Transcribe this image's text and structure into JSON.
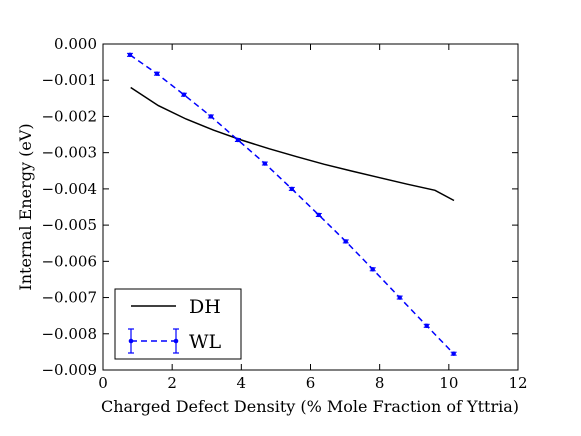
{
  "chart_data": {
    "type": "line",
    "xlabel": "Charged Defect Density (% Mole Fraction of Yttria)",
    "ylabel": "Internal Energy (eV)",
    "xlim": [
      0,
      12
    ],
    "ylim": [
      -0.009,
      0.0
    ],
    "xticks": [
      "0",
      "2",
      "4",
      "6",
      "8",
      "10",
      "12"
    ],
    "yticks": [
      "0.000",
      "−0.001",
      "−0.002",
      "−0.003",
      "−0.004",
      "−0.005",
      "−0.006",
      "−0.007",
      "−0.008",
      "−0.009"
    ],
    "grid": false,
    "legend_position": "lower-left",
    "series": [
      {
        "name": "DH",
        "style": "solid",
        "color": "#000000",
        "x": [
          0.8,
          1.6,
          2.4,
          3.2,
          4.0,
          4.8,
          5.6,
          6.4,
          7.2,
          8.0,
          8.8,
          9.6,
          10.15
        ],
        "y": [
          -0.0012,
          -0.0017,
          -0.00207,
          -0.00238,
          -0.00265,
          -0.00289,
          -0.00311,
          -0.00332,
          -0.00351,
          -0.00369,
          -0.00387,
          -0.00404,
          -0.00432
        ]
      },
      {
        "name": "WL",
        "style": "dashed",
        "error_bars": true,
        "color": "#0000ff",
        "x": [
          0.78,
          1.56,
          2.34,
          3.12,
          3.9,
          4.68,
          5.46,
          6.24,
          7.02,
          7.8,
          8.58,
          9.36,
          10.14
        ],
        "y": [
          -0.0003,
          -0.00082,
          -0.0014,
          -0.002,
          -0.00265,
          -0.0033,
          -0.004,
          -0.00472,
          -0.00545,
          -0.00622,
          -0.007,
          -0.00778,
          -0.00855
        ]
      }
    ]
  }
}
